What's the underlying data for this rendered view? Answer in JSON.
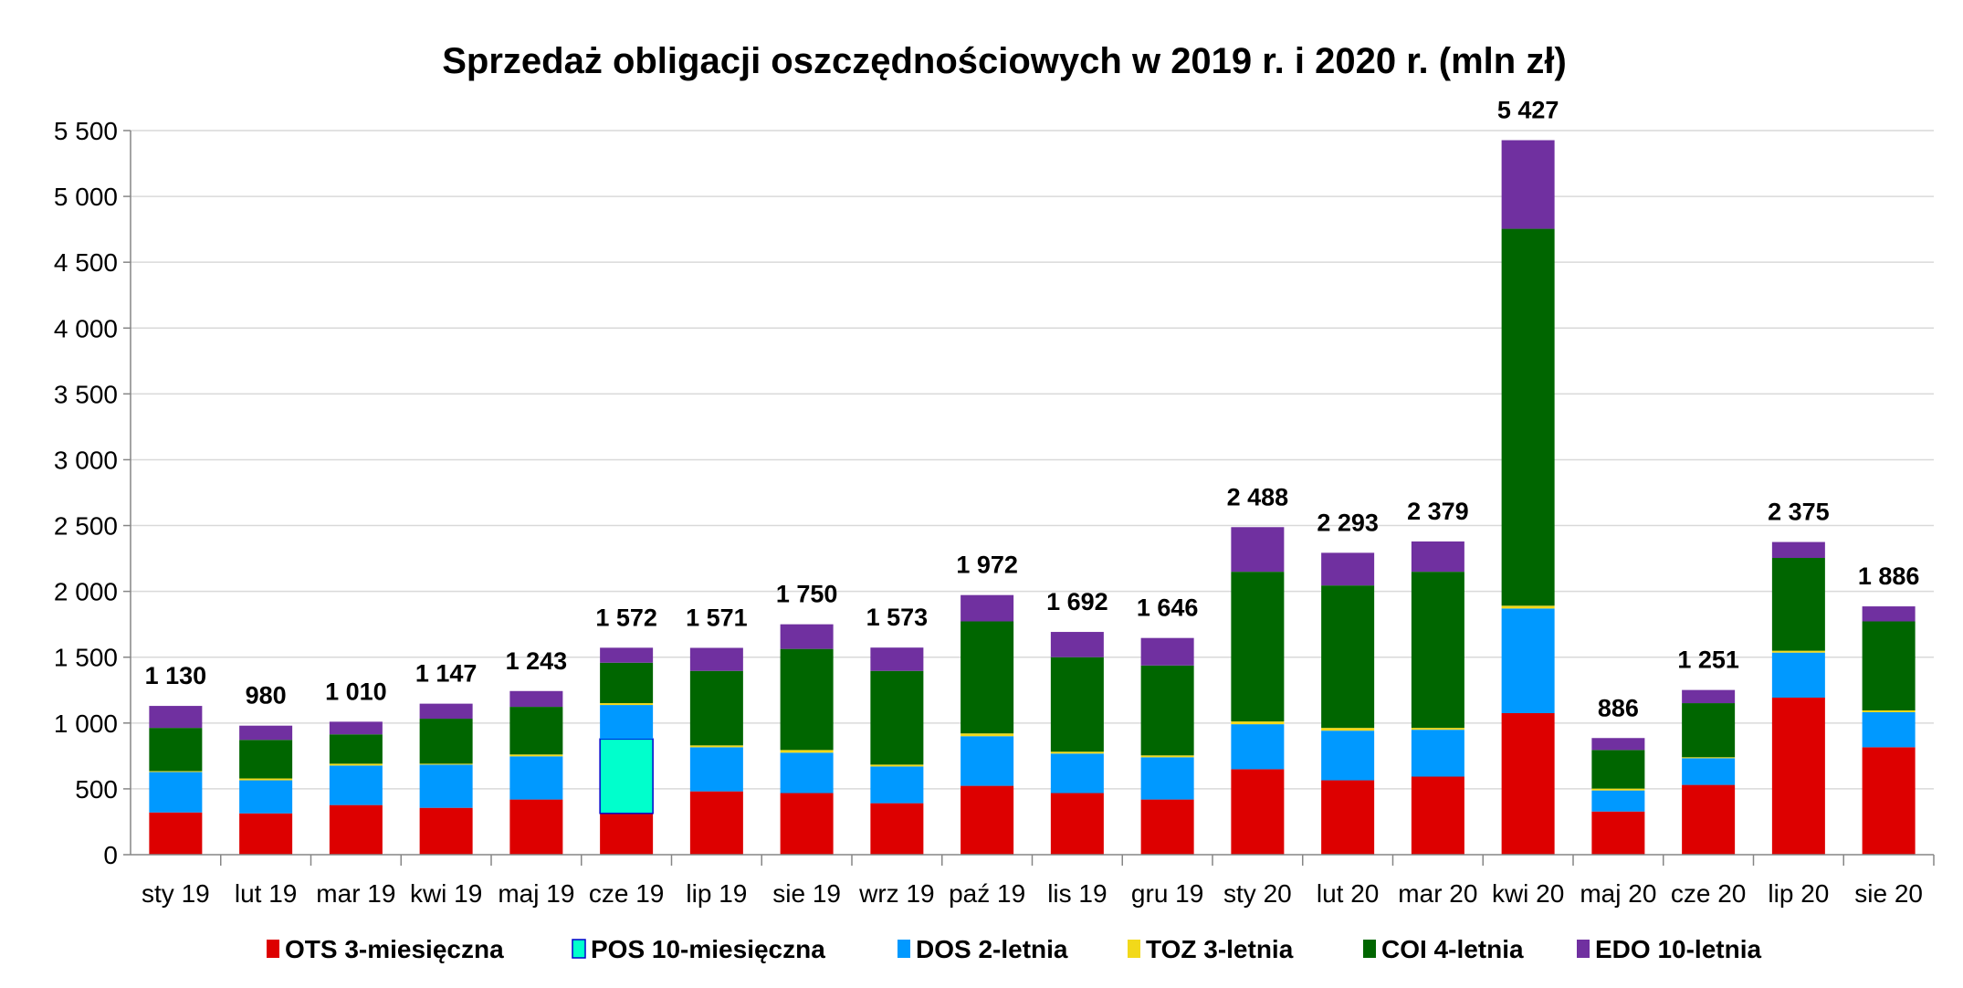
{
  "chart_data": {
    "type": "bar",
    "stacked": true,
    "title": "Sprzedaż obligacji oszczędnościowych w 2019 r. i 2020 r. (mln zł)",
    "xlabel": "",
    "ylabel": "",
    "ylim": [
      0,
      5500
    ],
    "yticks": [
      "0",
      "500",
      "1 000",
      "1 500",
      "2 000",
      "2 500",
      "3 000",
      "3 500",
      "4 000",
      "4 500",
      "5 000",
      "5 500"
    ],
    "grid": true,
    "legend_position": "bottom",
    "categories": [
      "sty 19",
      "lut 19",
      "mar 19",
      "kwi 19",
      "maj 19",
      "cze 19",
      "lip 19",
      "sie 19",
      "wrz 19",
      "paź 19",
      "lis 19",
      "gru 19",
      "sty 20",
      "lut 20",
      "mar 20",
      "kwi 20",
      "maj 20",
      "cze 20",
      "lip 20",
      "sie 20"
    ],
    "totals": [
      "1 130",
      "980",
      "1 010",
      "1 147",
      "1 243",
      "1 572",
      "1 571",
      "1 750",
      "1 573",
      "1 972",
      "1 692",
      "1 646",
      "2 488",
      "2 293",
      "2 379",
      "5 427",
      "886",
      "1 251",
      "2 375",
      "1 886"
    ],
    "series": [
      {
        "name": "OTS 3-miesięczna",
        "color": "#dd0000",
        "values": [
          321,
          314,
          377,
          356,
          419,
          314,
          481,
          468,
          391,
          523,
          468,
          419,
          649,
          565,
          593,
          1075,
          328,
          530,
          1193,
          816
        ]
      },
      {
        "name": "POS 10-miesięczna",
        "color": "#00ffcc",
        "legend_text_color": "#0000cc",
        "values": [
          0,
          0,
          0,
          0,
          0,
          565,
          0,
          0,
          0,
          0,
          0,
          0,
          0,
          0,
          0,
          0,
          0,
          0,
          0,
          0
        ]
      },
      {
        "name": "DOS 2-letnia",
        "color": "#0099ff",
        "values": [
          307,
          251,
          300,
          328,
          328,
          258,
          335,
          307,
          279,
          377,
          300,
          321,
          342,
          377,
          356,
          795,
          160,
          203,
          342,
          266
        ]
      },
      {
        "name": "TOZ 3-letnia",
        "color": "#f2d91a",
        "values": [
          7,
          14,
          14,
          7,
          14,
          14,
          14,
          20,
          14,
          21,
          14,
          14,
          21,
          21,
          14,
          21,
          14,
          7,
          14,
          14
        ]
      },
      {
        "name": "COI 4-letnia",
        "color": "#006600",
        "values": [
          328,
          293,
          223,
          342,
          362,
          307,
          566,
          768,
          712,
          851,
          718,
          683,
          1137,
          1082,
          1186,
          2863,
          293,
          411,
          705,
          676
        ]
      },
      {
        "name": "EDO 10-letnia",
        "color": "#7030a0",
        "values": [
          167,
          108,
          96,
          114,
          120,
          114,
          175,
          187,
          177,
          200,
          192,
          209,
          339,
          248,
          230,
          673,
          91,
          100,
          121,
          114
        ]
      }
    ]
  }
}
